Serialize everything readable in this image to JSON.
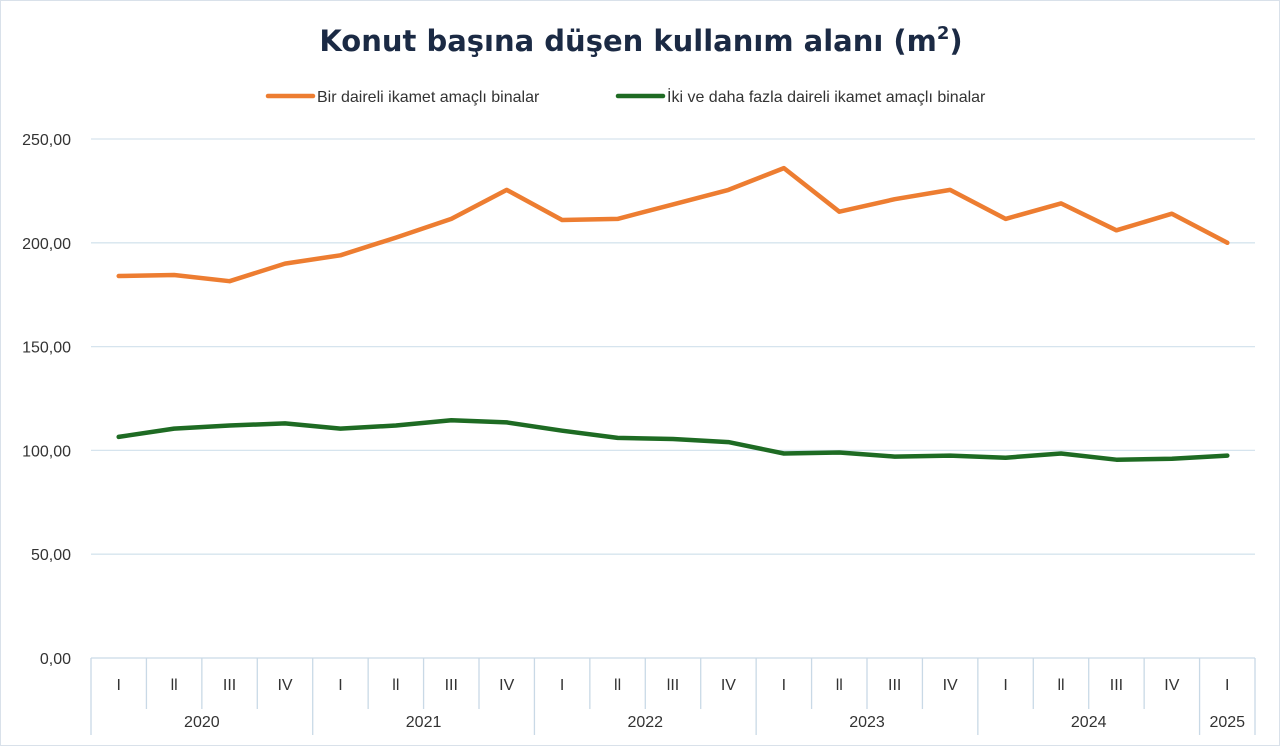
{
  "chart_data": {
    "type": "line",
    "title": "Konut başına düşen kullanım alanı (m",
    "title_superscript": "2",
    "title_suffix": ")",
    "ylim": [
      0,
      250
    ],
    "yticks": [
      "0,00",
      "50,00",
      "100,00",
      "150,00",
      "200,00",
      "250,00"
    ],
    "ytick_values": [
      0,
      50,
      100,
      150,
      200,
      250
    ],
    "grid": true,
    "legend_position": "top",
    "categories": [
      "I",
      "ll",
      "III",
      "IV",
      "I",
      "ll",
      "III",
      "IV",
      "I",
      "ll",
      "lII",
      "IV",
      "I",
      "ll",
      "III",
      "IV",
      "I",
      "ll",
      "III",
      "IV",
      "I"
    ],
    "years": [
      {
        "label": "2020",
        "count": 4
      },
      {
        "label": "2021",
        "count": 4
      },
      {
        "label": "2022",
        "count": 4
      },
      {
        "label": "2023",
        "count": 4
      },
      {
        "label": "2024",
        "count": 4
      },
      {
        "label": "2025",
        "count": 1
      }
    ],
    "series": [
      {
        "name": "Bir daireli ikamet amaçlı binalar",
        "color": "#ed7d31",
        "values": [
          184,
          184.5,
          181.5,
          190,
          194,
          202.5,
          211.5,
          225.5,
          211,
          211.5,
          218.5,
          225.5,
          236,
          215,
          221,
          225.5,
          211.5,
          219,
          206,
          214,
          200
        ]
      },
      {
        "name": "İki ve daha fazla daireli ikamet amaçlı binalar",
        "color": "#1e6b23",
        "values": [
          106.5,
          110.5,
          112,
          113,
          110.5,
          112,
          114.5,
          113.5,
          109.5,
          106,
          105.5,
          104,
          98.5,
          99,
          97,
          97.5,
          96.5,
          98.5,
          95.5,
          96,
          97.5
        ]
      }
    ]
  }
}
